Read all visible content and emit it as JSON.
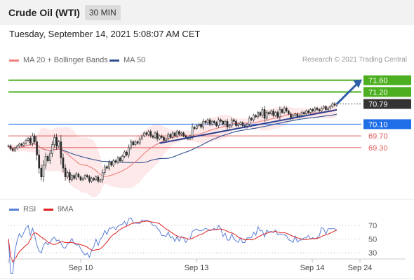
{
  "header": {
    "title": "Crude Oil (WTI)",
    "timeframe": "30 MIN"
  },
  "datetime": "Tuesday, September 14, 2021 5:08:07 AM CET",
  "legend": {
    "ma20_label": "MA 20 + Bollinger Bands",
    "ma50_label": "MA 50",
    "credit": "Research © 2021 Trading Central",
    "rsi_label": "RSI",
    "rsi_ma_label": "9MA"
  },
  "colors": {
    "ma20": "#f08080",
    "ma50": "#2f4f8f",
    "bollinger_fill": "#fde4e4",
    "resistance": "#4caf1f",
    "current_price": "#333333",
    "pivot": "#1f6ee8",
    "support": "#e05a5a",
    "rsi": "#5b7fd6",
    "rsi_ma": "#e02020",
    "candle_up": "#f6f6f6",
    "candle_down": "#2b2b2b"
  },
  "chart_data": [
    {
      "type": "candlestick",
      "x_tick_labels": [
        "Sep 10",
        "Sep 13",
        "Sep 14",
        "Sep 24"
      ],
      "current_price": 70.79,
      "levels": [
        {
          "value": 71.6,
          "label": "71.60",
          "kind": "resistance"
        },
        {
          "value": 71.2,
          "label": "71.20",
          "kind": "resistance"
        },
        {
          "value": 70.79,
          "label": "70.79",
          "kind": "current"
        },
        {
          "value": 70.1,
          "label": "70.10",
          "kind": "pivot"
        },
        {
          "value": 69.7,
          "label": "69.70",
          "kind": "support"
        },
        {
          "value": 69.3,
          "label": "69.30",
          "kind": "support"
        }
      ],
      "ylim": [
        67.6,
        71.95
      ],
      "close": [
        69.36,
        69.25,
        69.2,
        69.28,
        69.35,
        69.42,
        69.38,
        69.45,
        69.55,
        69.62,
        69.45,
        69.7,
        69.5,
        69.05,
        68.6,
        68.3,
        68.7,
        69.0,
        68.85,
        69.1,
        69.4,
        69.65,
        69.35,
        69.5,
        68.95,
        68.6,
        68.3,
        68.45,
        68.2,
        68.35,
        68.25,
        68.4,
        68.3,
        68.2,
        68.25,
        68.35,
        68.3,
        68.15,
        68.25,
        68.2,
        68.3,
        68.15,
        68.2,
        68.45,
        68.65,
        68.6,
        68.8,
        68.7,
        68.85,
        68.8,
        68.95,
        68.85,
        69.0,
        69.15,
        69.05,
        69.3,
        69.5,
        69.4,
        69.5,
        69.45,
        69.6,
        69.7,
        69.8,
        69.75,
        69.85,
        69.7,
        69.65,
        69.8,
        69.6,
        69.7,
        69.65,
        69.55,
        69.6,
        69.75,
        69.65,
        69.8,
        69.7,
        69.85,
        69.75,
        69.8,
        69.7,
        69.65,
        69.6,
        69.7,
        70.0,
        69.95,
        70.05,
        70.1,
        70.0,
        70.2,
        70.15,
        70.25,
        70.1,
        70.2,
        70.15,
        70.05,
        70.25,
        70.2,
        70.1,
        70.2,
        70.0,
        70.05,
        70.25,
        70.2,
        70.05,
        70.1,
        70.15,
        70.05,
        70.0,
        70.1,
        70.3,
        70.25,
        70.4,
        70.35,
        70.5,
        70.4,
        70.6,
        70.3,
        70.5,
        70.45,
        70.55,
        70.4,
        70.5,
        70.35,
        70.6,
        70.5,
        70.65,
        70.55,
        70.45,
        70.3,
        70.4,
        70.45,
        70.35,
        70.4,
        70.5,
        70.45,
        70.55,
        70.5,
        70.6,
        70.55,
        70.65,
        70.6,
        70.55,
        70.65,
        70.7,
        70.6,
        70.65,
        70.7,
        70.8,
        70.75,
        70.79
      ]
    },
    {
      "type": "line",
      "title": "RSI",
      "yticks": [
        30,
        50,
        70
      ],
      "ylim": [
        25,
        80
      ],
      "series": [
        {
          "name": "RSI"
        },
        {
          "name": "9MA"
        }
      ]
    }
  ]
}
